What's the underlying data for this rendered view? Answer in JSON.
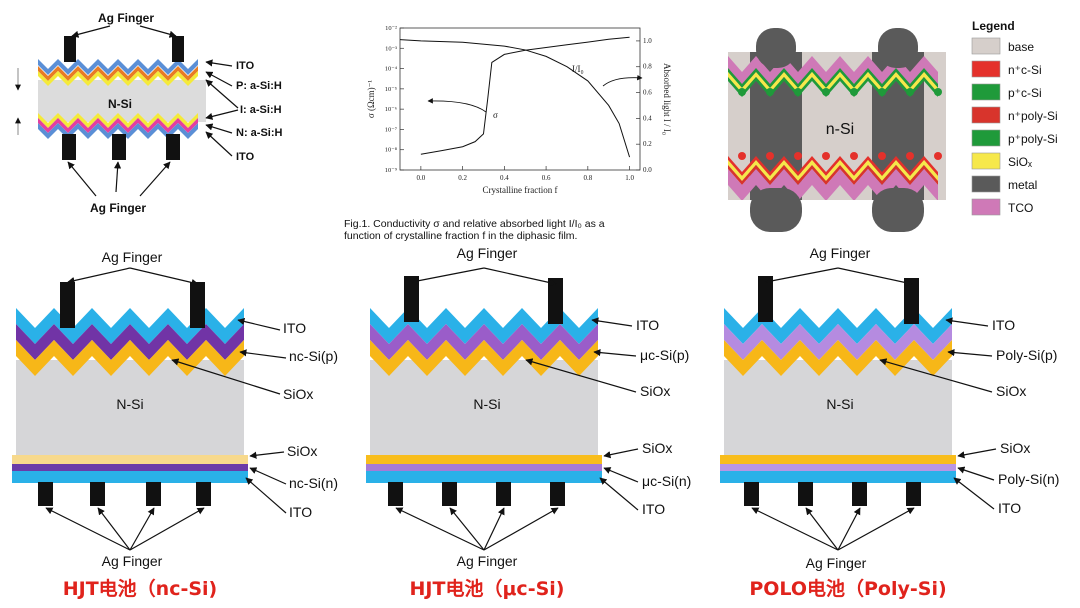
{
  "top_left": {
    "ag_finger_top": "Ag Finger",
    "ag_finger_bottom": "Ag Finger",
    "substrate": "N-Si",
    "labels": [
      "ITO",
      "P: a-Si:H",
      "I: a-Si:H",
      "N: a-Si:H",
      "ITO"
    ]
  },
  "top_mid": {
    "chart_data": {
      "type": "line",
      "title": "",
      "xlabel": "Crystalline fraction  f",
      "ylabel_left": "σ  (Ωcm)⁻¹",
      "ylabel_right": "Absorbed light  I / I₀",
      "xlim": [
        -0.1,
        1.05
      ],
      "x_ticks": [
        "0.0",
        "0.2",
        "0.4",
        "0.6",
        "0.8",
        "1.0"
      ],
      "y_left_ticks": [
        "10⁻⁹",
        "10⁻⁸",
        "10⁻⁷",
        "10⁻⁶",
        "10⁻⁵",
        "10⁻⁴",
        "10⁻³",
        "10⁻²"
      ],
      "y_right_ticks": [
        "0.0",
        "0.2",
        "0.4",
        "0.6",
        "0.8",
        "1.0"
      ],
      "series": [
        {
          "name": "σ",
          "axis": "left-log",
          "x": [
            0.0,
            0.1,
            0.2,
            0.26,
            0.3,
            0.32,
            0.34,
            0.4,
            0.5,
            0.6,
            0.7,
            0.8,
            0.9,
            1.0
          ],
          "y": [
            6e-09,
            9e-09,
            1.4e-08,
            2.5e-08,
            6e-08,
            3e-06,
            0.0002,
            0.0005,
            0.0008,
            0.0011,
            0.0015,
            0.002,
            0.0028,
            0.0035
          ]
        },
        {
          "name": "I/I₀",
          "axis": "right",
          "x": [
            -0.1,
            0.0,
            0.2,
            0.4,
            0.5,
            0.6,
            0.7,
            0.8,
            0.9,
            0.95,
            1.0
          ],
          "y": [
            1.01,
            1.0,
            0.99,
            0.96,
            0.93,
            0.88,
            0.8,
            0.69,
            0.5,
            0.36,
            0.1
          ]
        }
      ],
      "annotations": [
        "I/I₀",
        "σ"
      ]
    },
    "caption_line1": "Fig.1. Conductivity σ and relative absorbed light I/I₀ as a",
    "caption_line2": "function of crystalline fraction f in the diphasic film."
  },
  "top_right": {
    "substrate": "n-Si",
    "legend_title": "Legend",
    "legend": [
      {
        "label": "base",
        "color": "#d6cfcb"
      },
      {
        "label": "n⁺c-Si",
        "color": "#e4312b"
      },
      {
        "label": "p⁺c-Si",
        "color": "#1f9a3a"
      },
      {
        "label": "n⁺poly-Si",
        "color": "#d8342c"
      },
      {
        "label": "p⁺poly-Si",
        "color": "#1f9a3a"
      },
      {
        "label": "SiOₓ",
        "color": "#f6e84a"
      },
      {
        "label": "metal",
        "color": "#5a5a5a"
      },
      {
        "label": "TCO",
        "color": "#cf79b7"
      }
    ]
  },
  "cells": [
    {
      "ag_top": "Ag Finger",
      "ag_bottom": "Ag Finger",
      "substrate": "N-Si",
      "labels": [
        "ITO",
        "nc-Si(p)",
        "SiOx",
        "SiOx",
        "nc-Si(n)",
        "ITO"
      ],
      "title": "HJT电池（nc-Si)",
      "p_color": "#7134a6",
      "n_color": "#6a3ba8",
      "siox_bottom_color": "#f7d98c"
    },
    {
      "ag_top": "Ag Finger",
      "ag_bottom": "Ag Finger",
      "substrate": "N-Si",
      "labels": [
        "ITO",
        "μc-Si(p)",
        "SiOx",
        "SiOx",
        "μc-Si(n)",
        "ITO"
      ],
      "title": "HJT电池（μc-Si)",
      "p_color": "#9a5dc9",
      "n_color": "#a67bd6",
      "siox_bottom_color": "#f8bd1c"
    },
    {
      "ag_top": "Ag Finger",
      "ag_bottom": "Ag Finger",
      "substrate": "N-Si",
      "labels": [
        "ITO",
        "Poly-Si(p)",
        "SiOx",
        "SiOx",
        "Poly-Si(n)",
        "ITO"
      ],
      "title": "POLO电池（Poly-Si)",
      "p_color": "#b58be0",
      "n_color": "#b896e4",
      "siox_bottom_color": "#f8bd1c"
    }
  ],
  "colors": {
    "ito": "#2ab1e8",
    "siox": "#f7b718",
    "substrate": "#d6d6d8",
    "finger": "#111111",
    "title_red": "#e0231c"
  }
}
